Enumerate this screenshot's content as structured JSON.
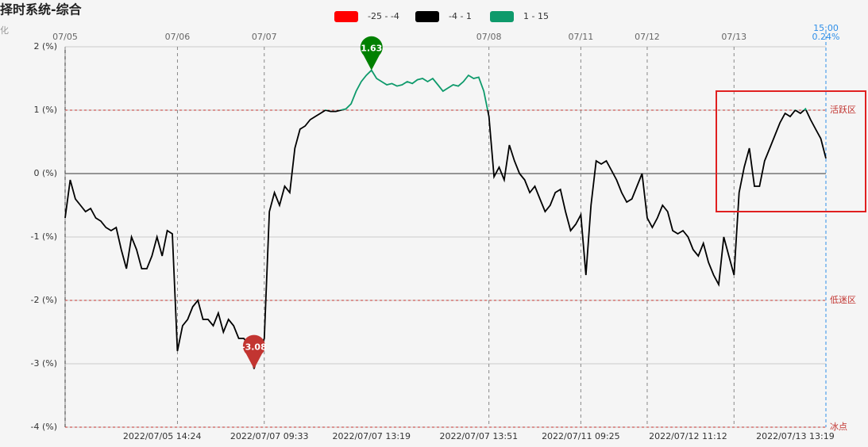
{
  "chart_data": {
    "type": "line",
    "title": "择时系统-综合",
    "y_label": "化",
    "legend": [
      {
        "label": "-25 - -4",
        "color": "#ff0000",
        "min": -25,
        "max": -4
      },
      {
        "label": "-4 - 1",
        "color": "#000000",
        "min": -4,
        "max": 1
      },
      {
        "label": "1 - 15",
        "color": "#0e9a6b",
        "min": 1,
        "max": 15
      }
    ],
    "ylim": [
      -4,
      2
    ],
    "yticks": [
      {
        "value": 2,
        "label": "2 (%)"
      },
      {
        "value": 1,
        "label": "1 (%)"
      },
      {
        "value": 0,
        "label": "0 (%)"
      },
      {
        "value": -1,
        "label": "-1 (%)"
      },
      {
        "value": -2,
        "label": "-2 (%)"
      },
      {
        "value": -3,
        "label": "-3 (%)"
      },
      {
        "value": -4,
        "label": "-4 (%)"
      }
    ],
    "grid": true,
    "day_markers": [
      {
        "index": 0,
        "label": "07/05"
      },
      {
        "index": 22,
        "label": "07/06"
      },
      {
        "index": 39,
        "label": "07/07"
      },
      {
        "index": 83,
        "label": "07/08"
      },
      {
        "index": 101,
        "label": "07/11"
      },
      {
        "index": 114,
        "label": "07/12"
      },
      {
        "index": 131,
        "label": "07/13"
      }
    ],
    "x_labels": [
      {
        "index": 19,
        "label": "2022/07/05 14:24"
      },
      {
        "index": 40,
        "label": "2022/07/07 09:33"
      },
      {
        "index": 60,
        "label": "2022/07/07 13:19"
      },
      {
        "index": 81,
        "label": "2022/07/07 13:51"
      },
      {
        "index": 101,
        "label": "2022/07/11 09:25"
      },
      {
        "index": 122,
        "label": "2022/07/12 11:12"
      },
      {
        "index": 143,
        "label": "2022/07/13 13:19"
      }
    ],
    "mark_lines": [
      {
        "value": 1,
        "label": "活跃区"
      },
      {
        "value": -2,
        "label": "低迷区"
      },
      {
        "value": -4,
        "label": "冰点"
      }
    ],
    "mark_line_color": "#c23531",
    "max_pin_color": "#008000",
    "min_pin_color": "#c23531",
    "end_time": "15:00",
    "end_value_label": "0.24%",
    "end_color": "#2f8fe8",
    "series": [
      {
        "name": "综合",
        "values": [
          -0.7,
          -0.1,
          -0.4,
          -0.5,
          -0.6,
          -0.55,
          -0.7,
          -0.75,
          -0.85,
          -0.9,
          -0.85,
          -1.2,
          -1.5,
          -1.0,
          -1.2,
          -1.5,
          -1.5,
          -1.3,
          -1.0,
          -1.3,
          -0.9,
          -0.95,
          -2.8,
          -2.4,
          -2.3,
          -2.1,
          -2.0,
          -2.3,
          -2.3,
          -2.4,
          -2.2,
          -2.5,
          -2.3,
          -2.4,
          -2.6,
          -2.6,
          -2.7,
          -3.08,
          -2.8,
          -2.6,
          -0.6,
          -0.3,
          -0.5,
          -0.2,
          -0.3,
          0.4,
          0.7,
          0.75,
          0.85,
          0.9,
          0.95,
          1.0,
          0.98,
          0.98,
          1.0,
          1.02,
          1.1,
          1.3,
          1.45,
          1.55,
          1.63,
          1.5,
          1.45,
          1.4,
          1.42,
          1.38,
          1.4,
          1.45,
          1.42,
          1.48,
          1.5,
          1.45,
          1.5,
          1.4,
          1.3,
          1.35,
          1.4,
          1.38,
          1.45,
          1.55,
          1.5,
          1.52,
          1.3,
          0.9,
          -0.05,
          0.1,
          -0.1,
          0.45,
          0.2,
          0.0,
          -0.1,
          -0.3,
          -0.2,
          -0.4,
          -0.6,
          -0.5,
          -0.3,
          -0.25,
          -0.6,
          -0.9,
          -0.8,
          -0.65,
          -1.6,
          -0.5,
          0.2,
          0.15,
          0.2,
          0.05,
          -0.1,
          -0.3,
          -0.45,
          -0.4,
          -0.2,
          0.0,
          -0.7,
          -0.85,
          -0.7,
          -0.5,
          -0.6,
          -0.9,
          -0.95,
          -0.9,
          -1.0,
          -1.2,
          -1.3,
          -1.1,
          -1.4,
          -1.6,
          -1.75,
          -1.0,
          -1.3,
          -1.6,
          -0.3,
          0.1,
          0.4,
          -0.2,
          -0.2,
          0.2,
          0.4,
          0.6,
          0.8,
          0.95,
          0.9,
          1.0,
          0.95,
          1.02,
          0.85,
          0.7,
          0.55,
          0.24
        ]
      }
    ]
  }
}
